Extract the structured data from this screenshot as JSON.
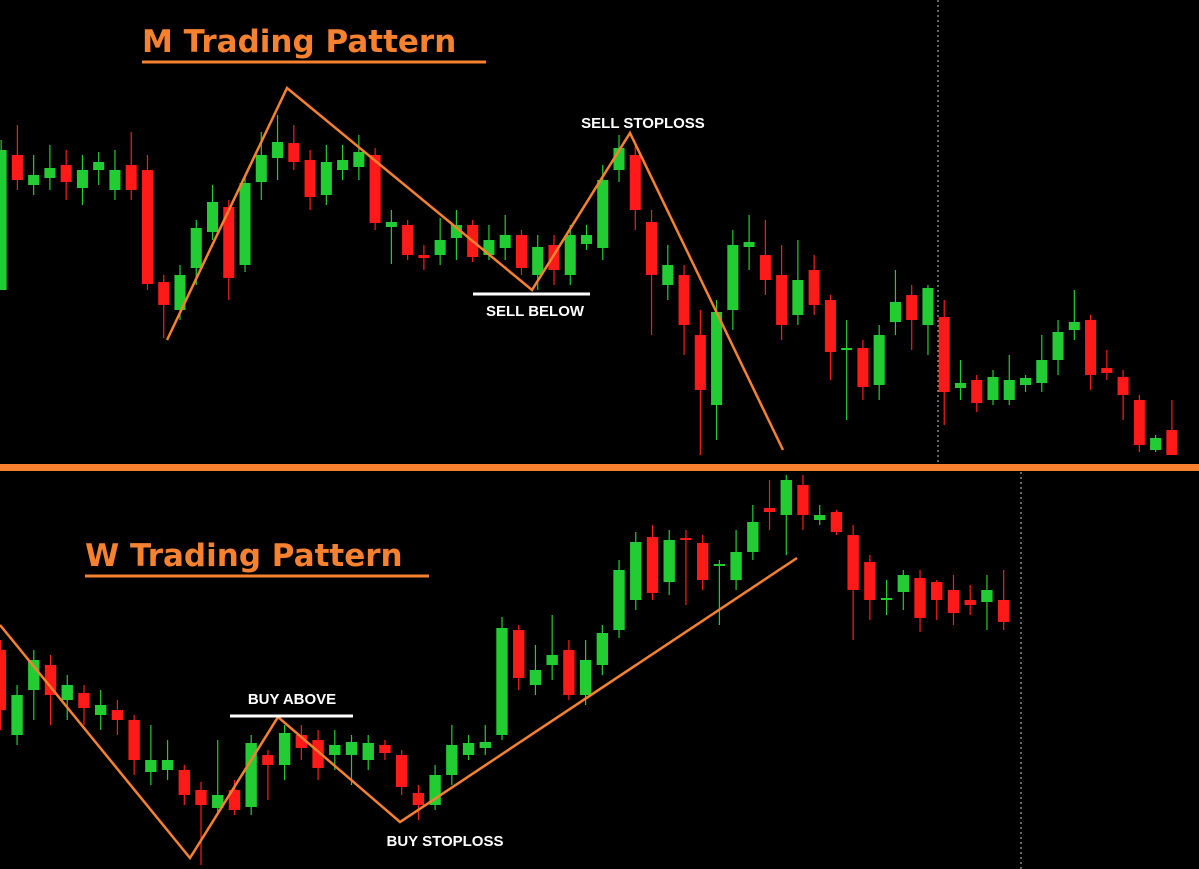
{
  "chart_data": [
    {
      "type": "candlestick",
      "title": "M Trading Pattern",
      "annotations": [
        "SELL STOPLOSS",
        "SELL BELOW"
      ],
      "up_color": "#22cc33",
      "down_color": "#ff1a1a",
      "ylim": [
        35,
        500
      ],
      "open": [
        210,
        345,
        315,
        322,
        335,
        312,
        330,
        310,
        335,
        330,
        218,
        190,
        232,
        268,
        293,
        235,
        318,
        342,
        357,
        340,
        305,
        330,
        333,
        345,
        273,
        275,
        245,
        245,
        262,
        275,
        245,
        252,
        265,
        225,
        255,
        225,
        256,
        252,
        330,
        345,
        278,
        215,
        225,
        165,
        95,
        190,
        253,
        245,
        225,
        185,
        230,
        200,
        150,
        152,
        115,
        178,
        205,
        175,
        183,
        112,
        120,
        100,
        100,
        115,
        117,
        140,
        170,
        180,
        132,
        123,
        100,
        50,
        70
      ],
      "high": [
        360,
        375,
        345,
        355,
        350,
        345,
        348,
        350,
        368,
        345,
        225,
        235,
        280,
        315,
        300,
        325,
        368,
        385,
        375,
        350,
        355,
        355,
        365,
        352,
        290,
        280,
        255,
        282,
        290,
        280,
        275,
        285,
        270,
        265,
        265,
        275,
        275,
        335,
        365,
        355,
        290,
        255,
        235,
        190,
        200,
        270,
        285,
        280,
        255,
        260,
        245,
        205,
        180,
        160,
        175,
        230,
        215,
        215,
        200,
        140,
        125,
        130,
        145,
        125,
        165,
        180,
        210,
        185,
        150,
        130,
        105,
        65,
        100
      ],
      "low": [
        210,
        310,
        305,
        310,
        300,
        295,
        315,
        300,
        300,
        210,
        162,
        180,
        215,
        260,
        200,
        228,
        300,
        320,
        330,
        290,
        295,
        320,
        320,
        270,
        236,
        240,
        230,
        235,
        240,
        238,
        240,
        240,
        225,
        210,
        215,
        215,
        250,
        240,
        318,
        270,
        165,
        200,
        145,
        45,
        60,
        170,
        230,
        205,
        160,
        175,
        185,
        120,
        80,
        100,
        100,
        165,
        150,
        145,
        75,
        100,
        88,
        95,
        95,
        108,
        108,
        125,
        160,
        110,
        120,
        80,
        48,
        48,
        45
      ],
      "close": [
        350,
        320,
        325,
        332,
        318,
        330,
        338,
        330,
        310,
        216,
        195,
        225,
        272,
        298,
        222,
        317,
        345,
        358,
        338,
        303,
        338,
        340,
        348,
        277,
        278,
        245,
        242,
        260,
        275,
        243,
        260,
        265,
        232,
        253,
        230,
        265,
        265,
        320,
        352,
        290,
        225,
        235,
        175,
        110,
        188,
        255,
        258,
        220,
        175,
        220,
        195,
        148,
        152,
        113,
        165,
        198,
        180,
        212,
        108,
        117,
        97,
        123,
        120,
        122,
        140,
        168,
        178,
        125,
        127,
        105,
        55,
        62,
        45
      ]
    },
    {
      "type": "candlestick",
      "title": "W Trading Pattern",
      "annotations": [
        "BUY ABOVE",
        "BUY STOPLOSS"
      ],
      "up_color": "#22cc33",
      "down_color": "#ff1a1a",
      "ylim": [
        31,
        430
      ],
      "open": [
        250,
        165,
        210,
        235,
        200,
        207,
        185,
        190,
        180,
        128,
        130,
        130,
        110,
        92,
        110,
        93,
        145,
        135,
        165,
        160,
        145,
        145,
        140,
        155,
        145,
        107,
        95,
        125,
        145,
        152,
        165,
        270,
        215,
        235,
        250,
        205,
        235,
        270,
        300,
        363,
        318,
        362,
        357,
        335,
        320,
        348,
        392,
        385,
        415,
        380,
        388,
        365,
        338,
        300,
        308,
        322,
        318,
        310,
        300,
        298,
        300
      ],
      "high": [
        260,
        215,
        250,
        245,
        225,
        215,
        210,
        200,
        185,
        175,
        160,
        135,
        118,
        160,
        120,
        165,
        150,
        175,
        175,
        170,
        170,
        165,
        165,
        160,
        150,
        115,
        135,
        175,
        165,
        175,
        283,
        275,
        255,
        285,
        260,
        260,
        275,
        340,
        368,
        375,
        370,
        370,
        365,
        340,
        370,
        395,
        420,
        425,
        425,
        395,
        390,
        375,
        345,
        320,
        330,
        330,
        320,
        325,
        315,
        325,
        330
      ],
      "low": [
        170,
        155,
        180,
        175,
        180,
        175,
        170,
        165,
        125,
        115,
        120,
        95,
        35,
        85,
        85,
        85,
        100,
        120,
        140,
        120,
        130,
        115,
        130,
        140,
        105,
        80,
        90,
        115,
        140,
        145,
        160,
        210,
        205,
        220,
        200,
        195,
        225,
        262,
        290,
        300,
        305,
        295,
        310,
        275,
        310,
        340,
        370,
        345,
        370,
        375,
        365,
        260,
        280,
        285,
        290,
        268,
        280,
        275,
        285,
        270,
        270
      ],
      "close": [
        190,
        205,
        240,
        205,
        215,
        192,
        195,
        180,
        140,
        140,
        140,
        105,
        95,
        105,
        90,
        157,
        135,
        167,
        152,
        132,
        155,
        158,
        157,
        147,
        113,
        95,
        125,
        155,
        157,
        158,
        272,
        222,
        230,
        245,
        205,
        240,
        267,
        330,
        358,
        307,
        360,
        360,
        320,
        336,
        348,
        378,
        388,
        420,
        385,
        385,
        368,
        310,
        300,
        302,
        325,
        282,
        300,
        287,
        295,
        310,
        278
      ]
    }
  ]
}
